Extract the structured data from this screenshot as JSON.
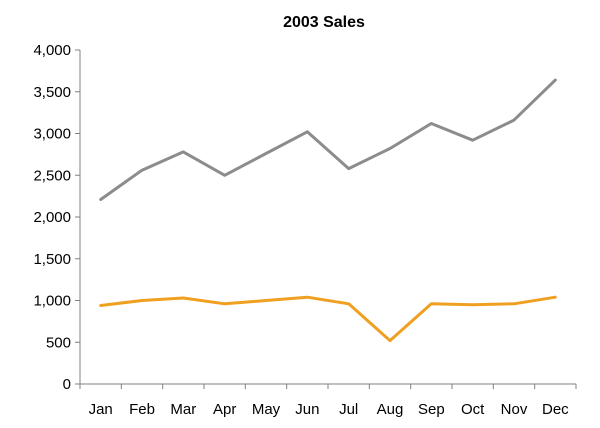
{
  "chart_data": {
    "type": "line",
    "title": "2003 Sales",
    "xlabel": "",
    "ylabel": "",
    "categories": [
      "Jan",
      "Feb",
      "Mar",
      "Apr",
      "May",
      "Jun",
      "Jul",
      "Aug",
      "Sep",
      "Oct",
      "Nov",
      "Dec"
    ],
    "ylim": [
      0,
      4000
    ],
    "yticks": [
      {
        "value": 0,
        "label": "0"
      },
      {
        "value": 500,
        "label": "500"
      },
      {
        "value": 1000,
        "label": "1,000"
      },
      {
        "value": 1500,
        "label": "1,500"
      },
      {
        "value": 2000,
        "label": "2,000"
      },
      {
        "value": 2500,
        "label": "2,500"
      },
      {
        "value": 3000,
        "label": "3,000"
      },
      {
        "value": 3500,
        "label": "3,500"
      },
      {
        "value": 4000,
        "label": "4,000"
      }
    ],
    "grid": false,
    "legend": "none",
    "series": [
      {
        "color": "#8c8c8c",
        "values": [
          2210,
          2560,
          2780,
          2500,
          2760,
          3020,
          2580,
          2820,
          3120,
          2920,
          3160,
          3640
        ]
      },
      {
        "color": "#f0a020",
        "values": [
          940,
          1000,
          1030,
          960,
          1000,
          1040,
          960,
          520,
          960,
          950,
          960,
          1040
        ]
      }
    ]
  }
}
